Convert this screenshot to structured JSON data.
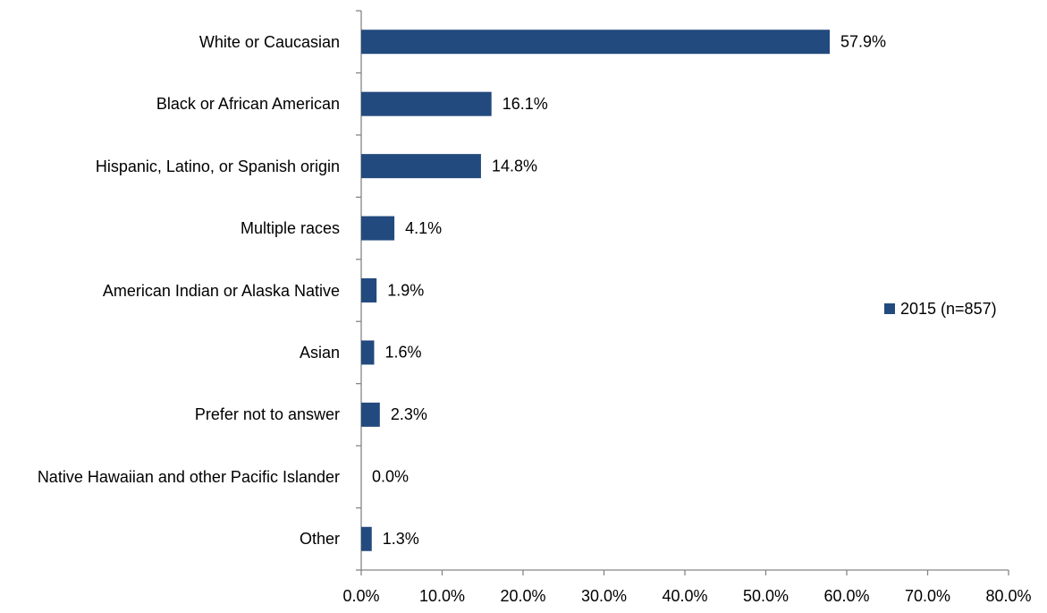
{
  "chart_data": {
    "type": "bar",
    "orientation": "horizontal",
    "categories": [
      "White or Caucasian",
      "Black or African American",
      "Hispanic, Latino, or Spanish origin",
      "Multiple races",
      "American Indian or Alaska Native",
      "Asian",
      "Prefer not to answer",
      "Native Hawaiian and other Pacific Islander",
      "Other"
    ],
    "series": [
      {
        "name": "2015 (n=857)",
        "color": "#234a7e",
        "values": [
          57.9,
          16.1,
          14.8,
          4.1,
          1.9,
          1.6,
          2.3,
          0.0,
          1.3
        ],
        "value_labels": [
          "57.9%",
          "16.1%",
          "14.8%",
          "4.1%",
          "1.9%",
          "1.6%",
          "2.3%",
          "0.0%",
          "1.3%"
        ]
      }
    ],
    "xlim": [
      0,
      80
    ],
    "xticks": [
      {
        "value": 0,
        "label": "0.0%"
      },
      {
        "value": 10,
        "label": "10.0%"
      },
      {
        "value": 20,
        "label": "20.0%"
      },
      {
        "value": 30,
        "label": "30.0%"
      },
      {
        "value": 40,
        "label": "40.0%"
      },
      {
        "value": 50,
        "label": "50.0%"
      },
      {
        "value": 60,
        "label": "60.0%"
      },
      {
        "value": 70,
        "label": "70.0%"
      },
      {
        "value": 80,
        "label": "80.0%"
      }
    ],
    "grid": false,
    "legend": "right"
  }
}
